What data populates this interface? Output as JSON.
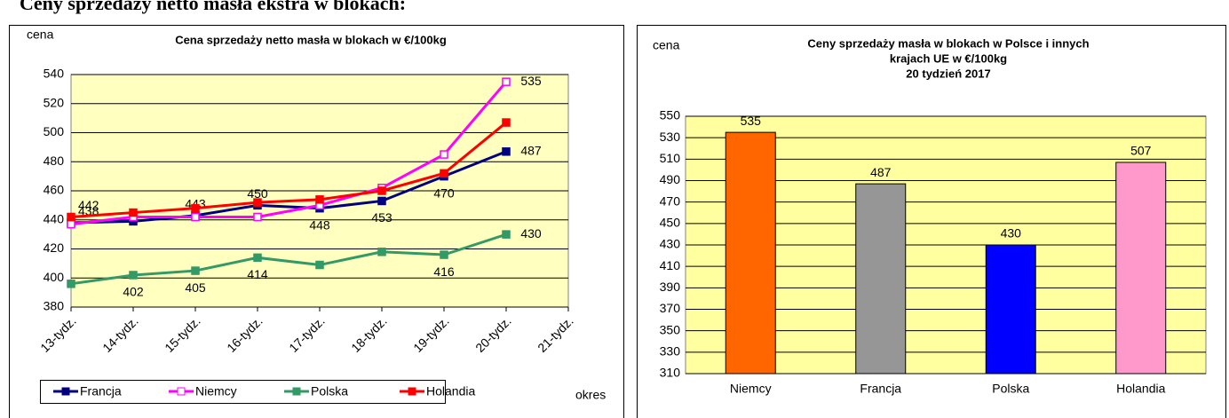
{
  "page_title": "Ceny sprzedaży netto masła ekstra w blokach:",
  "chart_data": [
    {
      "type": "line",
      "title": "Cena sprzedaży netto masła  w blokach  w €/100kg",
      "y_label": "cena",
      "x_label": "okres",
      "categories": [
        "13-tydz.",
        "14-tydz.",
        "15-tydz.",
        "16-tydz.",
        "17-tydz.",
        "18-tydz.",
        "19-tydz.",
        "20-tydz.",
        "21-tydz."
      ],
      "series": [
        {
          "name": "Francja",
          "color": "#000080",
          "marker": "filled",
          "values": [
            438,
            439,
            443,
            450,
            448,
            453,
            470,
            487,
            null
          ],
          "value_labels": [
            "438",
            null,
            "443",
            "450",
            "448",
            "453",
            "470",
            "487",
            null
          ]
        },
        {
          "name": "Niemcy",
          "color": "#ff00ff",
          "marker": "hollow",
          "values": [
            437,
            442,
            442,
            442,
            450,
            462,
            485,
            535,
            null
          ],
          "value_labels": [
            null,
            null,
            null,
            null,
            null,
            null,
            null,
            "535",
            null
          ]
        },
        {
          "name": "Polska",
          "color": "#339966",
          "marker": "filled",
          "values": [
            396,
            402,
            405,
            414,
            409,
            418,
            416,
            430,
            null
          ],
          "value_labels": [
            null,
            "402",
            "405",
            "414",
            null,
            null,
            "416",
            "430",
            null
          ]
        },
        {
          "name": "Holandia",
          "color": "#ff0000",
          "marker": "filled",
          "values": [
            442,
            445,
            448,
            452,
            454,
            460,
            472,
            507,
            null
          ],
          "value_labels": [
            "442",
            null,
            null,
            null,
            null,
            null,
            null,
            null,
            null
          ]
        }
      ],
      "ylim": [
        380,
        540
      ],
      "yticks": [
        380,
        400,
        420,
        440,
        460,
        480,
        500,
        520,
        540
      ],
      "grid": true,
      "legend": "bottom"
    },
    {
      "type": "bar",
      "title": [
        "Ceny sprzedaży masła w blokach w Polsce i  innych",
        "krajach UE w €/100kg",
        "20 tydzień 2017"
      ],
      "y_label": "cena",
      "categories": [
        "Niemcy",
        "Francja",
        "Polska",
        "Holandia"
      ],
      "values": [
        535,
        487,
        430,
        507
      ],
      "colors": [
        "#ff6600",
        "#969696",
        "#0000ff",
        "#ff99cc"
      ],
      "ylim": [
        310,
        550
      ],
      "yticks": [
        310,
        330,
        350,
        370,
        390,
        410,
        430,
        450,
        470,
        490,
        510,
        530,
        550
      ],
      "grid": true
    }
  ]
}
